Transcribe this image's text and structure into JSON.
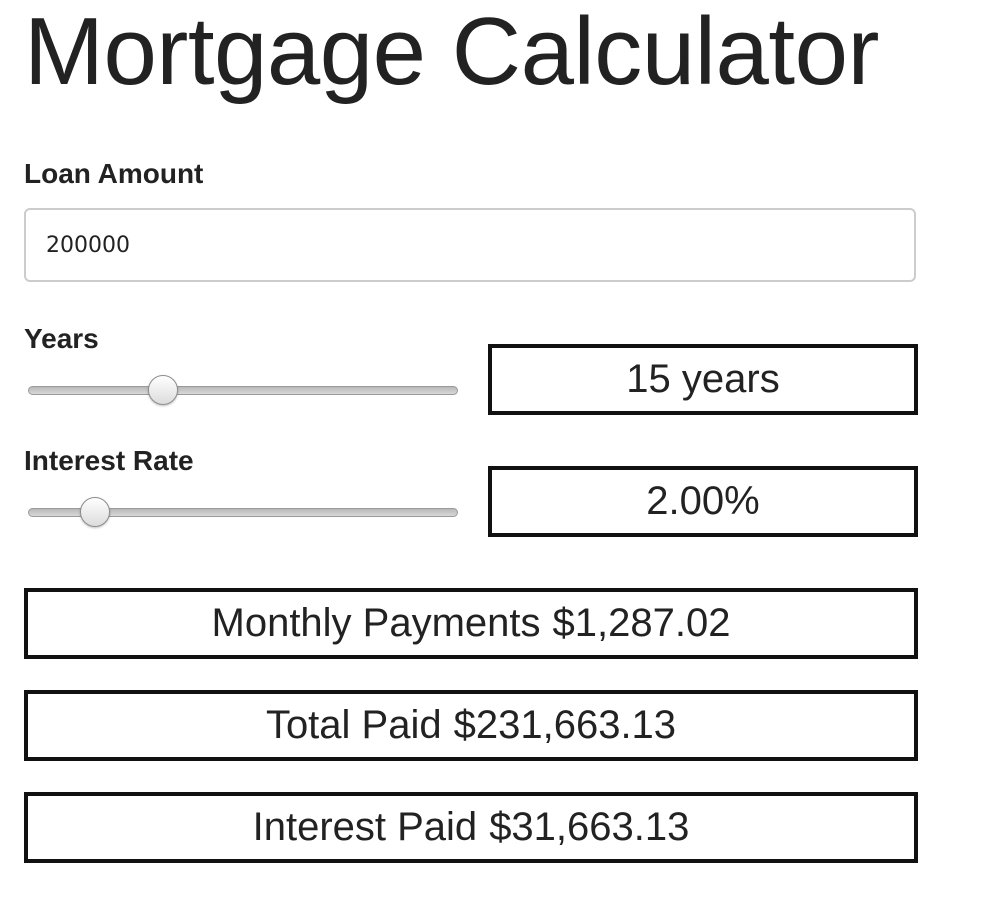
{
  "title": "Mortgage Calculator",
  "loan": {
    "label": "Loan Amount",
    "value": "200000"
  },
  "years": {
    "label": "Years",
    "display": "15 years",
    "slider_fraction": 0.3
  },
  "interest": {
    "label": "Interest Rate",
    "display": "2.00%",
    "slider_fraction": 0.13
  },
  "results": {
    "monthly_label": "Monthly Payments",
    "monthly_value": "$1,287.02",
    "total_label": "Total Paid",
    "total_value": "$231,663.13",
    "interest_label": "Interest Paid",
    "interest_value": "$31,663.13"
  }
}
